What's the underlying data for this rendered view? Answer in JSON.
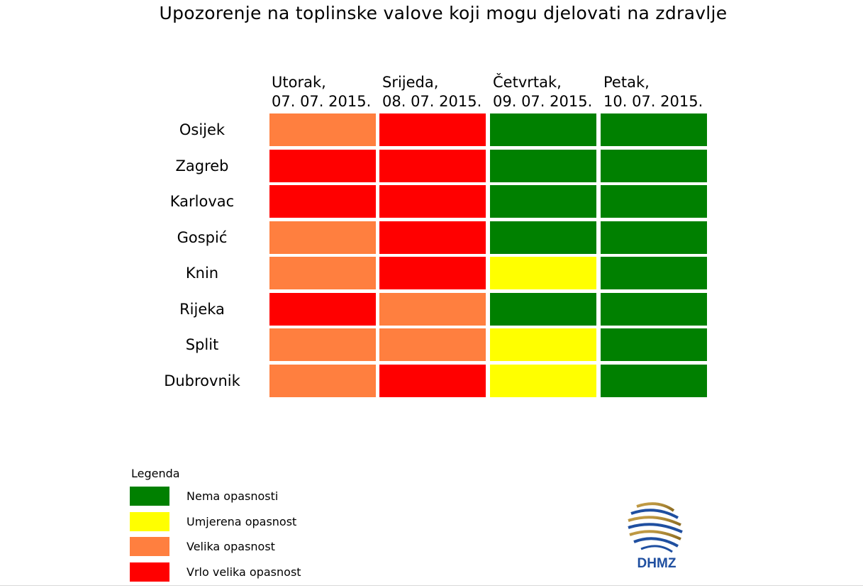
{
  "chart_data": {
    "type": "table",
    "title": "Upozorenje na toplinske valove koji mogu djelovati na zdravlje",
    "columns": [
      {
        "day": "Utorak,",
        "date": "07. 07. 2015."
      },
      {
        "day": "Srijeda,",
        "date": "08. 07. 2015."
      },
      {
        "day": "Četvrtak,",
        "date": "09. 07. 2015."
      },
      {
        "day": "Petak,",
        "date": "10. 07. 2015."
      }
    ],
    "rows": [
      {
        "city": "Osijek",
        "levels": [
          2,
          3,
          0,
          0
        ]
      },
      {
        "city": "Zagreb",
        "levels": [
          3,
          3,
          0,
          0
        ]
      },
      {
        "city": "Karlovac",
        "levels": [
          3,
          3,
          0,
          0
        ]
      },
      {
        "city": "Gospić",
        "levels": [
          2,
          3,
          0,
          0
        ]
      },
      {
        "city": "Knin",
        "levels": [
          2,
          3,
          1,
          0
        ]
      },
      {
        "city": "Rijeka",
        "levels": [
          3,
          2,
          0,
          0
        ]
      },
      {
        "city": "Split",
        "levels": [
          2,
          2,
          1,
          0
        ]
      },
      {
        "city": "Dubrovnik",
        "levels": [
          2,
          3,
          1,
          0
        ]
      }
    ],
    "legend": {
      "title": "Legenda",
      "items": [
        {
          "label": "Nema opasnosti",
          "color": "#008000"
        },
        {
          "label": "Umjerena opasnost",
          "color": "#ffff00"
        },
        {
          "label": "Velika opasnost",
          "color": "#ff7f3f"
        },
        {
          "label": "Vrlo velika opasnost",
          "color": "#ff0000"
        }
      ]
    },
    "logo_text": "DHMZ"
  }
}
